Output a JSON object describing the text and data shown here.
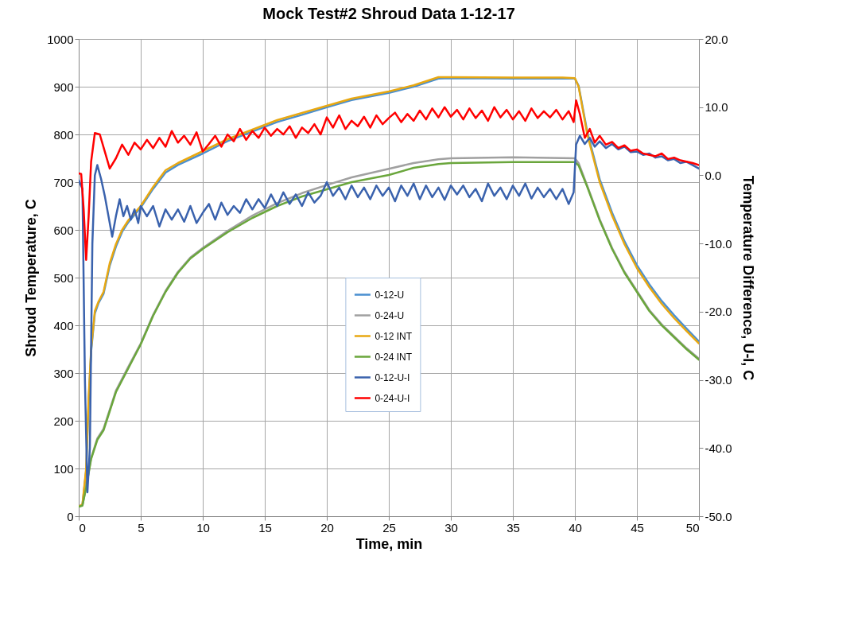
{
  "chart_data": {
    "type": "line",
    "title": "Mock Test#2 Shroud Data 1-12-17",
    "xlabel": "Time, min",
    "ylabel": "Shroud Temperature, C",
    "y2label": "Temperature Difference, U-I, C",
    "xlim": [
      0,
      50
    ],
    "xticks": [
      0,
      5,
      10,
      15,
      20,
      25,
      30,
      35,
      40,
      45,
      50
    ],
    "ylim": [
      0,
      1000
    ],
    "yticks": [
      0,
      100,
      200,
      300,
      400,
      500,
      600,
      700,
      800,
      900,
      1000
    ],
    "y2lim": [
      -50,
      20
    ],
    "y2ticks": [
      {
        "value": -50,
        "label": "-50.0"
      },
      {
        "value": -40,
        "label": "-40.0"
      },
      {
        "value": -30,
        "label": "-30.0"
      },
      {
        "value": -20,
        "label": "-20.0"
      },
      {
        "value": -10,
        "label": "-10.0"
      },
      {
        "value": 0,
        "label": "0.0"
      },
      {
        "value": 10,
        "label": "10.0"
      },
      {
        "value": 20,
        "label": "20.0"
      }
    ],
    "grid": true,
    "legend": "bottom",
    "marker": "none",
    "line_style": "solid",
    "series": [
      {
        "name": "0-12-U",
        "color": "#4a8fd0",
        "x": [
          0,
          0.3,
          0.6,
          0.8,
          1,
          1.3,
          1.6,
          2,
          2.5,
          3,
          3.5,
          4,
          5,
          6,
          7,
          8,
          10,
          12,
          14,
          16,
          18,
          20,
          22,
          25,
          27,
          29,
          30,
          35,
          39,
          40,
          40.3,
          41,
          42,
          43,
          44,
          45,
          46,
          47,
          48,
          49,
          50
        ],
        "values": [
          20,
          24,
          95,
          240,
          345,
          425,
          447,
          466,
          525,
          565,
          596,
          616,
          647,
          686,
          720,
          736,
          760,
          786,
          806,
          826,
          841,
          857,
          872,
          887,
          900,
          917,
          918,
          917,
          917,
          917,
          902,
          805,
          706,
          636,
          576,
          526,
          486,
          451,
          421,
          393,
          366
        ]
      },
      {
        "name": "0-24-U",
        "color": "#a0a0a0",
        "x": [
          0,
          0.3,
          0.6,
          1,
          1.5,
          2,
          2.5,
          3,
          4,
          5,
          6,
          7,
          8,
          9,
          10,
          12,
          14,
          16,
          18,
          20,
          22,
          25,
          27,
          29,
          30,
          35,
          40,
          40.3,
          41,
          42,
          43,
          44,
          45,
          46,
          47,
          48,
          49,
          50
        ],
        "values": [
          20,
          23,
          62,
          122,
          163,
          183,
          223,
          263,
          313,
          362,
          422,
          472,
          512,
          542,
          562,
          598,
          630,
          656,
          677,
          694,
          710,
          728,
          740,
          748,
          750,
          752,
          750,
          740,
          692,
          622,
          562,
          512,
          472,
          432,
          402,
          377,
          352,
          330
        ]
      },
      {
        "name": "0-12 INT",
        "color": "#e8a812",
        "x": [
          0,
          0.3,
          0.6,
          0.8,
          1,
          1.3,
          1.6,
          2,
          2.5,
          3,
          3.5,
          4,
          5,
          6,
          7,
          8,
          10,
          12,
          14,
          16,
          18,
          20,
          22,
          25,
          27,
          29,
          30,
          35,
          39,
          40,
          40.3,
          41,
          42,
          43,
          44,
          45,
          46,
          47,
          48,
          49,
          50
        ],
        "values": [
          20,
          25,
          100,
          250,
          350,
          430,
          450,
          470,
          530,
          570,
          600,
          620,
          650,
          690,
          725,
          740,
          765,
          790,
          810,
          830,
          845,
          860,
          875,
          890,
          903,
          920,
          920,
          919,
          919,
          918,
          900,
          800,
          700,
          630,
          570,
          520,
          480,
          445,
          415,
          388,
          362
        ]
      },
      {
        "name": "0-24 INT",
        "color": "#6aa63c",
        "x": [
          0,
          0.3,
          0.6,
          1,
          1.5,
          2,
          2.5,
          3,
          4,
          5,
          6,
          7,
          8,
          9,
          10,
          12,
          14,
          16,
          18,
          20,
          22,
          25,
          27,
          29,
          30,
          35,
          40,
          40.3,
          41,
          42,
          43,
          44,
          45,
          46,
          47,
          48,
          49,
          50
        ],
        "values": [
          20,
          22,
          60,
          120,
          160,
          180,
          220,
          260,
          310,
          360,
          420,
          470,
          510,
          540,
          560,
          595,
          625,
          650,
          670,
          685,
          700,
          715,
          730,
          738,
          740,
          742,
          742,
          735,
          690,
          620,
          560,
          510,
          470,
          430,
          400,
          375,
          350,
          328
        ]
      },
      {
        "name": "0-12-U-I",
        "color": "#3a62ad",
        "axis": "y2",
        "x": [
          0,
          0.3,
          0.5,
          0.7,
          0.9,
          1.1,
          1.3,
          1.5,
          1.8,
          2.1,
          2.4,
          2.7,
          3,
          3.3,
          3.6,
          3.9,
          4.2,
          4.5,
          4.8,
          5,
          5.5,
          6,
          6.5,
          7,
          7.5,
          8,
          8.5,
          9,
          9.5,
          10,
          10.5,
          11,
          11.5,
          12,
          12.5,
          13,
          13.5,
          14,
          14.5,
          15,
          15.5,
          16,
          16.5,
          17,
          17.5,
          18,
          18.5,
          19,
          19.5,
          20,
          20.5,
          21,
          21.5,
          22,
          22.5,
          23,
          23.5,
          24,
          24.5,
          25,
          25.5,
          26,
          26.5,
          27,
          27.5,
          28,
          28.5,
          29,
          29.5,
          30,
          30.5,
          31,
          31.5,
          32,
          32.5,
          33,
          33.5,
          34,
          34.5,
          35,
          35.5,
          36,
          36.5,
          37,
          37.5,
          38,
          38.5,
          39,
          39.5,
          39.9,
          40.1,
          40.4,
          40.8,
          41.2,
          41.6,
          42,
          42.5,
          43,
          43.5,
          44,
          44.5,
          45,
          45.5,
          46,
          46.5,
          47,
          47.5,
          48,
          48.5,
          49,
          49.5,
          50
        ],
        "values": [
          -0.7,
          -2,
          -30,
          -46.5,
          -40,
          -10,
          0,
          1.5,
          -0.5,
          -3,
          -6,
          -9,
          -6,
          -3.5,
          -6,
          -4.5,
          -6.5,
          -5,
          -7,
          -4.5,
          -6,
          -4.5,
          -7.5,
          -5,
          -6.5,
          -5,
          -6.8,
          -4.5,
          -7,
          -5.5,
          -4.2,
          -6.5,
          -4,
          -5.8,
          -4.5,
          -5.5,
          -3.5,
          -5,
          -3.5,
          -4.8,
          -2.8,
          -4.5,
          -2.5,
          -4.2,
          -2.8,
          -4.5,
          -2.5,
          -4,
          -3,
          -1,
          -3,
          -1.8,
          -3.5,
          -1.5,
          -3.2,
          -1.8,
          -3.5,
          -1.5,
          -3,
          -1.8,
          -3.8,
          -1.5,
          -3,
          -1.2,
          -3.5,
          -1.5,
          -3.2,
          -1.8,
          -3.6,
          -1.5,
          -2.8,
          -1.5,
          -3.2,
          -2,
          -3.8,
          -1.2,
          -3,
          -1.8,
          -3.5,
          -1.5,
          -3,
          -1.2,
          -3.4,
          -1.8,
          -3.2,
          -2,
          -3.5,
          -2,
          -4.2,
          -2.5,
          4.5,
          5.8,
          4.6,
          5.5,
          4.2,
          5,
          4,
          4.6,
          3.8,
          4.2,
          3.4,
          3.5,
          3,
          3.2,
          2.6,
          2.8,
          2.2,
          2.4,
          1.8,
          2,
          1.5,
          1
        ]
      },
      {
        "name": "0-24-U-I",
        "color": "#ff0000",
        "axis": "y2",
        "x": [
          0,
          0.2,
          0.4,
          0.6,
          0.8,
          1,
          1.3,
          1.7,
          2.1,
          2.5,
          3,
          3.5,
          4,
          4.5,
          5,
          5.5,
          6,
          6.5,
          7,
          7.5,
          8,
          8.5,
          9,
          9.5,
          10,
          10.5,
          11,
          11.5,
          12,
          12.5,
          13,
          13.5,
          14,
          14.5,
          15,
          15.5,
          16,
          16.5,
          17,
          17.5,
          18,
          18.5,
          19,
          19.5,
          20,
          20.5,
          21,
          21.5,
          22,
          22.5,
          23,
          23.5,
          24,
          24.5,
          25,
          25.5,
          26,
          26.5,
          27,
          27.5,
          28,
          28.5,
          29,
          29.5,
          30,
          30.5,
          31,
          31.5,
          32,
          32.5,
          33,
          33.5,
          34,
          34.5,
          35,
          35.5,
          36,
          36.5,
          37,
          37.5,
          38,
          38.5,
          39,
          39.5,
          39.9,
          40.1,
          40.4,
          40.8,
          41.2,
          41.6,
          42,
          42.5,
          43,
          43.5,
          44,
          44.5,
          45,
          45.5,
          46,
          46.5,
          47,
          47.5,
          48,
          48.5,
          49,
          49.5,
          50
        ],
        "values": [
          0.3,
          0.2,
          -5,
          -12.4,
          -6,
          2,
          6.2,
          6,
          3.5,
          1,
          2.5,
          4.5,
          3,
          4.8,
          3.8,
          5.2,
          4,
          5.5,
          4.2,
          6.5,
          4.8,
          5.8,
          4.5,
          6.3,
          3.5,
          4.6,
          5.8,
          4.2,
          6,
          5,
          6.8,
          5.2,
          6.5,
          5.5,
          7,
          5.8,
          6.8,
          6,
          7.2,
          5.5,
          7,
          6.2,
          7.5,
          6,
          8.5,
          7,
          8.8,
          6.8,
          8,
          7.2,
          8.6,
          7,
          8.8,
          7.5,
          8.4,
          9.2,
          7.8,
          9,
          8,
          9.5,
          8.2,
          9.8,
          8.5,
          10,
          8.6,
          9.6,
          8.2,
          9.8,
          8.4,
          9.5,
          8,
          10,
          8.5,
          9.6,
          8.2,
          9.4,
          8,
          9.8,
          8.4,
          9.4,
          8.5,
          9.6,
          8.2,
          9.4,
          7.8,
          11,
          9,
          5.5,
          6.8,
          4.8,
          5.8,
          4.5,
          4.9,
          4,
          4.4,
          3.6,
          3.8,
          3.2,
          3,
          2.8,
          3.2,
          2.4,
          2.6,
          2.2,
          2,
          1.8,
          1.5
        ]
      }
    ]
  }
}
